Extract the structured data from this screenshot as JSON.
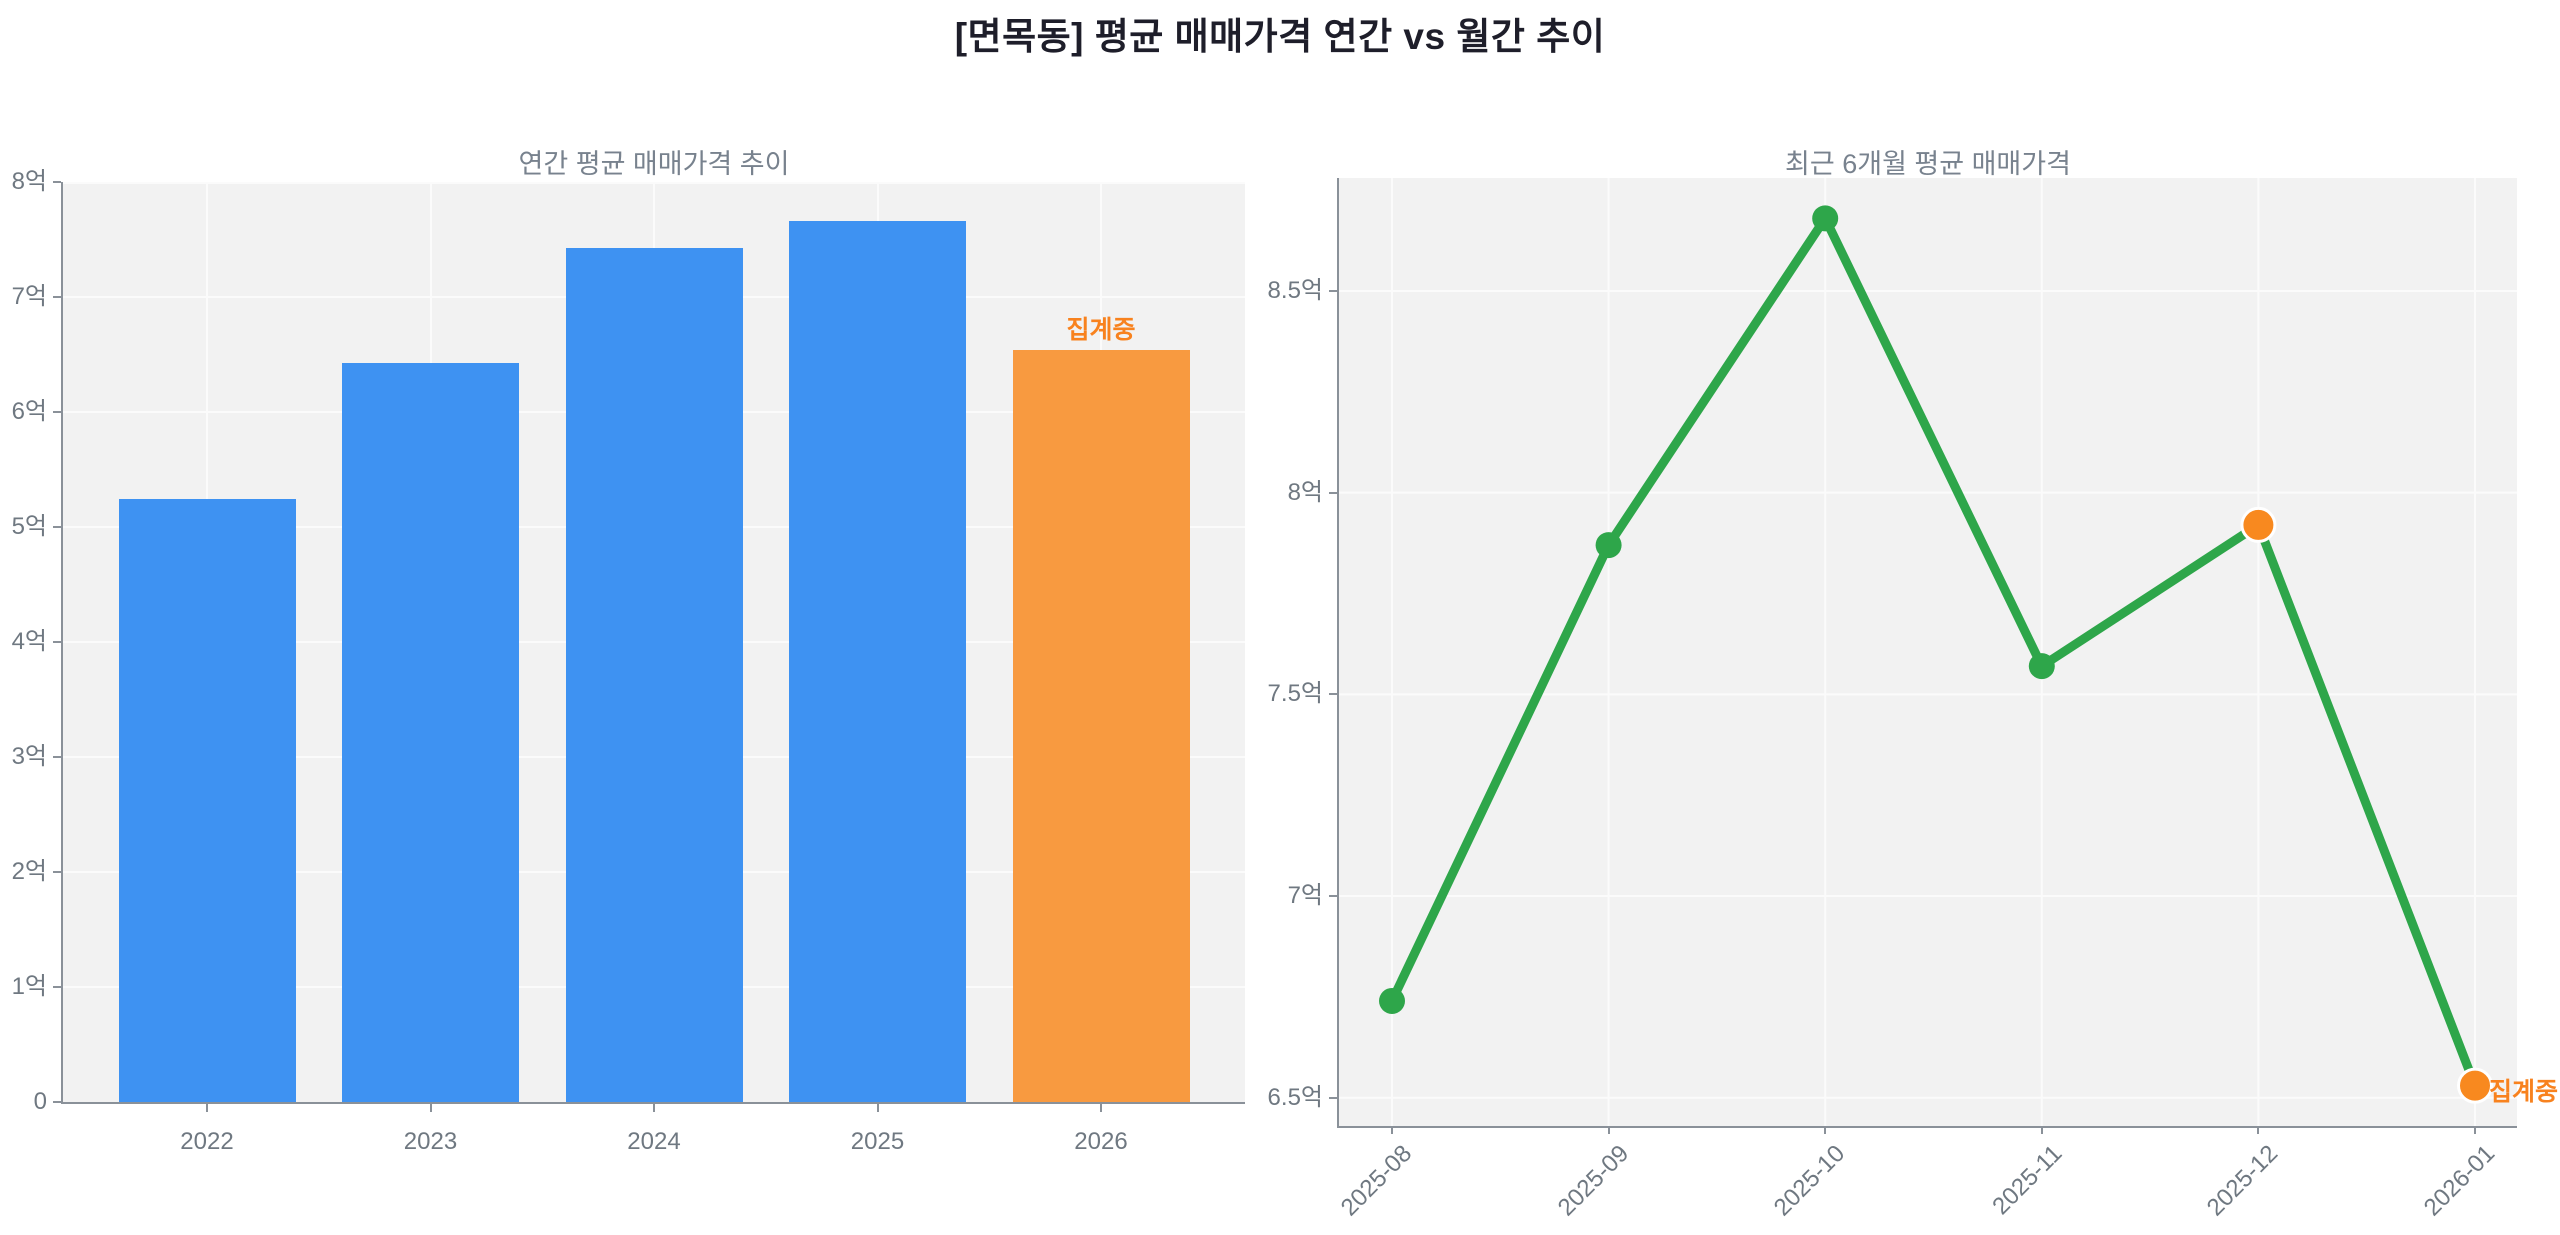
{
  "page": {
    "title": "[면목동] 평균 매매가격 연간 vs 월간 추이",
    "colors": {
      "bar_blue": "#3E92F2",
      "bar_orange": "#F89A40",
      "line_green": "#2EA64A",
      "marker_orange": "#F8891F",
      "annotation_orange": "#F8821E",
      "plot_background": "#F2F2F2",
      "axis_line": "#8A9199",
      "tick_text": "#6F7881",
      "subtitle_text": "#78828E",
      "title_text": "#1E1E2A"
    }
  },
  "chart_data": [
    {
      "type": "bar",
      "title": "연간 평균 매매가격 추이",
      "categories": [
        "2022",
        "2023",
        "2024",
        "2025",
        "2026"
      ],
      "values": [
        5.24,
        6.43,
        7.43,
        7.66,
        6.54
      ],
      "unit": "억",
      "ylim": [
        0,
        8
      ],
      "ytick_values": [
        0,
        1,
        2,
        3,
        4,
        5,
        6,
        7,
        8
      ],
      "ytick_labels": [
        "0",
        "1억",
        "2억",
        "3억",
        "4억",
        "5억",
        "6억",
        "7억",
        "8억"
      ],
      "bar_colors": [
        "#3E92F2",
        "#3E92F2",
        "#3E92F2",
        "#3E92F2",
        "#F89A40"
      ],
      "grid": true,
      "legend": "none",
      "annotation": {
        "text": "집계중",
        "category_index": 4,
        "color": "#F8821E"
      }
    },
    {
      "type": "line",
      "title": "최근 6개월 평균 매매가격",
      "x": [
        "2025-08",
        "2025-09",
        "2025-10",
        "2025-11",
        "2025-12",
        "2026-01"
      ],
      "y": [
        6.74,
        7.87,
        8.68,
        7.57,
        7.92,
        6.53
      ],
      "unit": "억",
      "ylim": [
        6.43,
        8.78
      ],
      "ytick_values": [
        6.5,
        7.0,
        7.5,
        8.0,
        8.5
      ],
      "ytick_labels": [
        "6.5억",
        "7억",
        "7.5억",
        "8억",
        "8.5억"
      ],
      "line_color": "#2EA64A",
      "marker_colors": [
        "#2EA64A",
        "#2EA64A",
        "#2EA64A",
        "#2EA64A",
        "#F8891F",
        "#F8891F"
      ],
      "grid": true,
      "legend": "none",
      "annotation": {
        "text": "집계중",
        "point_index": 5,
        "color": "#F8821E"
      }
    }
  ]
}
